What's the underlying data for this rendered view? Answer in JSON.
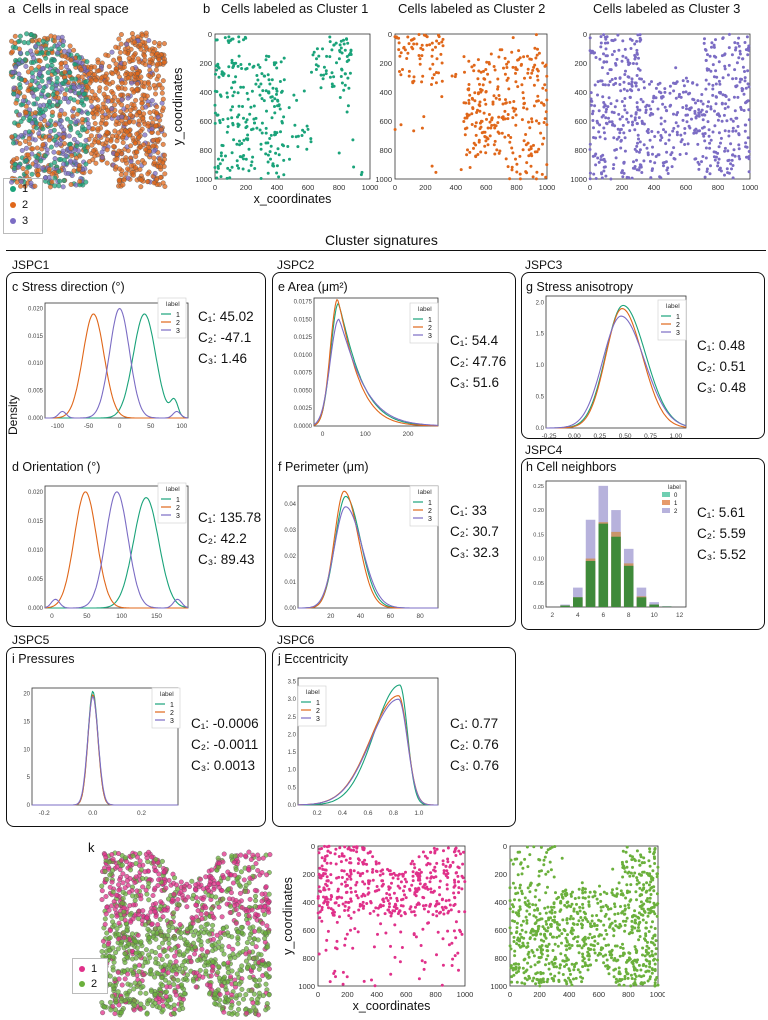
{
  "colors": {
    "c1": "#1aa37a",
    "c2": "#e0671a",
    "c3": "#7b6cc4",
    "pink": "#e0318a",
    "green": "#6bb03c",
    "axis": "#444"
  },
  "panel_a": {
    "letter": "a",
    "title": "Cells in real space",
    "legend": [
      "1",
      "2",
      "3"
    ]
  },
  "panel_b": {
    "letter": "b",
    "titles": [
      "Cells labeled as Cluster 1",
      "Cells labeled as Cluster 2",
      "Cells labeled as Cluster 3"
    ],
    "xlabel": "x_coordinates",
    "ylabel": "y_coordinates",
    "xticks": [
      "0",
      "200",
      "400",
      "600",
      "800",
      "1000"
    ],
    "yticks": [
      "0",
      "200",
      "400",
      "600",
      "800",
      "1000"
    ]
  },
  "signatures_title": "Cluster signatures",
  "groups": [
    "JSPC1",
    "JSPC2",
    "JSPC3",
    "JSPC4",
    "JSPC5",
    "JSPC6"
  ],
  "density_label": "Density",
  "legend_title": "label",
  "chart_data": [
    {
      "id": "c",
      "title": "Stress direction (°)",
      "type": "line",
      "legend": [
        "1",
        "2",
        "3"
      ],
      "xlim": [
        -120,
        110
      ],
      "ylim": [
        0,
        0.021
      ],
      "xticks": [
        "-100",
        "-50",
        "0",
        "50",
        "100"
      ],
      "yticks": [
        "0.000",
        "0.005",
        "0.010",
        "0.015",
        "0.020"
      ],
      "series": [
        {
          "name": "1",
          "peaks": [
            [
              40,
              0.019,
              18
            ],
            [
              88,
              0.003,
              6
            ]
          ]
        },
        {
          "name": "2",
          "peaks": [
            [
              -42,
              0.019,
              17
            ]
          ]
        },
        {
          "name": "3",
          "peaks": [
            [
              0,
              0.02,
              16
            ],
            [
              -92,
              0.0012,
              6
            ],
            [
              92,
              0.0012,
              6
            ]
          ]
        }
      ],
      "stats": [
        "C₁: 45.02",
        "C₂: -47.1",
        "C₃: 1.46"
      ]
    },
    {
      "id": "d",
      "title": "Orientation (°)",
      "type": "line",
      "legend": [
        "1",
        "2",
        "3"
      ],
      "xlim": [
        -10,
        195
      ],
      "ylim": [
        0,
        0.021
      ],
      "xticks": [
        "0",
        "50",
        "100",
        "150"
      ],
      "yticks": [
        "0.000",
        "0.005",
        "0.010",
        "0.015",
        "0.020"
      ],
      "series": [
        {
          "name": "1",
          "peaks": [
            [
              135,
              0.019,
              18
            ]
          ]
        },
        {
          "name": "2",
          "peaks": [
            [
              48,
              0.02,
              16
            ]
          ]
        },
        {
          "name": "3",
          "peaks": [
            [
              93,
              0.02,
              16
            ],
            [
              5,
              0.0015,
              6
            ],
            [
              180,
              0.0015,
              6
            ]
          ]
        }
      ],
      "stats": [
        "C₁: 135.78",
        "C₂: 42.2",
        "C₃: 89.43"
      ]
    },
    {
      "id": "e",
      "title": "Area (μm²)",
      "type": "line",
      "legend": [
        "1",
        "2",
        "3"
      ],
      "xlim": [
        -20,
        270
      ],
      "ylim": [
        0,
        0.018
      ],
      "xticks": [
        "0",
        "100",
        "200"
      ],
      "yticks": [
        "0.0000",
        "0.0025",
        "0.0050",
        "0.0075",
        "0.0100",
        "0.0125",
        "0.0150",
        "0.0175"
      ],
      "series": [
        {
          "name": "1",
          "mode": 37,
          "peak": 0.0172,
          "wl": 18,
          "wr": 55
        },
        {
          "name": "2",
          "mode": 35,
          "peak": 0.0178,
          "wl": 17,
          "wr": 50
        },
        {
          "name": "3",
          "mode": 38,
          "peak": 0.015,
          "wl": 20,
          "wr": 60
        }
      ],
      "stats": [
        "C₁: 54.4",
        "C₂: 47.76",
        "C₃: 51.6"
      ]
    },
    {
      "id": "f",
      "title": "Perimeter (μm)",
      "type": "line",
      "legend": [
        "1",
        "2",
        "3"
      ],
      "xlim": [
        -2,
        92
      ],
      "ylim": [
        0,
        0.047
      ],
      "xticks": [
        "20",
        "40",
        "60",
        "80"
      ],
      "yticks": [
        "0.00",
        "0.01",
        "0.02",
        "0.03",
        "0.04"
      ],
      "series": [
        {
          "name": "1",
          "mode": 30,
          "peak": 0.043,
          "wl": 7,
          "wr": 10
        },
        {
          "name": "2",
          "mode": 29,
          "peak": 0.045,
          "wl": 6.5,
          "wr": 9.5
        },
        {
          "name": "3",
          "mode": 30,
          "peak": 0.039,
          "wl": 7.5,
          "wr": 11
        }
      ],
      "stats": [
        "C₁: 33",
        "C₂: 30.7",
        "C₃: 32.3"
      ]
    },
    {
      "id": "g",
      "title": "Stress anisotropy",
      "type": "line",
      "legend": [
        "1",
        "2",
        "3"
      ],
      "xlim": [
        -0.28,
        1.1
      ],
      "ylim": [
        0,
        2.1
      ],
      "xticks": [
        "-0.25",
        "0.00",
        "0.25",
        "0.50",
        "0.75",
        "1.00"
      ],
      "yticks": [
        "0.0",
        "0.5",
        "1.0",
        "1.5",
        "2.0"
      ],
      "series": [
        {
          "name": "1",
          "mode": 0.48,
          "peak": 1.95,
          "wl": 0.17,
          "wr": 0.22
        },
        {
          "name": "2",
          "mode": 0.47,
          "peak": 1.9,
          "wl": 0.16,
          "wr": 0.2
        },
        {
          "name": "3",
          "mode": 0.46,
          "peak": 1.78,
          "wl": 0.18,
          "wr": 0.23
        }
      ],
      "stats": [
        "C₁: 0.48",
        "C₂: 0.51",
        "C₃: 0.48"
      ]
    },
    {
      "id": "h",
      "title": "Cell neighbors",
      "type": "bar",
      "legend": [
        "0",
        "1",
        "2"
      ],
      "xlim": [
        1.5,
        12.5
      ],
      "ylim": [
        0,
        0.26
      ],
      "xticks": [
        "2",
        "4",
        "6",
        "8",
        "10",
        "12"
      ],
      "yticks": [
        "0.00",
        "0.05",
        "0.10",
        "0.15",
        "0.20",
        "0.25"
      ],
      "x": [
        3,
        4,
        5,
        6,
        7,
        8,
        9,
        10,
        11
      ],
      "green": [
        0.003,
        0.02,
        0.095,
        0.172,
        0.145,
        0.085,
        0.02,
        0.005,
        0.001
      ],
      "orange": [
        0.003,
        0.02,
        0.1,
        0.175,
        0.155,
        0.09,
        0.022,
        0.005,
        0.001
      ],
      "purple": [
        0.005,
        0.04,
        0.18,
        0.25,
        0.2,
        0.12,
        0.04,
        0.01,
        0.002
      ],
      "stats": [
        "C₁: 5.61",
        "C₂: 5.59",
        "C₃: 5.52"
      ]
    },
    {
      "id": "i",
      "title": "Pressures",
      "type": "line",
      "legend": [
        "1",
        "2",
        "3"
      ],
      "xlim": [
        -0.25,
        0.35
      ],
      "ylim": [
        0,
        21
      ],
      "xticks": [
        "-0.2",
        "0.0",
        "0.2"
      ],
      "yticks": [
        "0",
        "5",
        "10",
        "15",
        "20"
      ],
      "series": [
        {
          "name": "1",
          "mode": 0,
          "peak": 20.4,
          "wl": 0.02,
          "wr": 0.021
        },
        {
          "name": "2",
          "mode": 0,
          "peak": 19.8,
          "wl": 0.02,
          "wr": 0.021
        },
        {
          "name": "3",
          "mode": 0,
          "peak": 19.5,
          "wl": 0.021,
          "wr": 0.022
        }
      ],
      "stats": [
        "C₁: -0.0006",
        "C₂: -0.0011",
        "C₃: 0.0013"
      ]
    },
    {
      "id": "j",
      "title": "Eccentricity",
      "type": "line",
      "legend": [
        "1",
        "2",
        "3"
      ],
      "xlim": [
        0.05,
        1.15
      ],
      "ylim": [
        0,
        3.6
      ],
      "xticks": [
        "0.2",
        "0.4",
        "0.6",
        "0.8",
        "1.0"
      ],
      "yticks": [
        "0.0",
        "0.5",
        "1.0",
        "1.5",
        "2.0",
        "2.5",
        "3.0",
        "3.5"
      ],
      "series": [
        {
          "name": "1",
          "mode": 0.85,
          "peak": 3.4,
          "wl": 0.2,
          "wr": 0.06
        },
        {
          "name": "2",
          "mode": 0.84,
          "peak": 3.1,
          "wl": 0.22,
          "wr": 0.07
        },
        {
          "name": "3",
          "mode": 0.84,
          "peak": 3.0,
          "wl": 0.22,
          "wr": 0.07
        }
      ],
      "stats": [
        "C₁: 0.77",
        "C₂: 0.76",
        "C₃: 0.76"
      ]
    }
  ],
  "panel_k": {
    "letter": "k",
    "legend": [
      "1",
      "2"
    ],
    "xlabel": "x_coordinates",
    "ylabel": "y_coordinates",
    "xticks": [
      "0",
      "200",
      "400",
      "600",
      "800",
      "1000"
    ],
    "yticks": [
      "0",
      "200",
      "400",
      "600",
      "800",
      "1000"
    ]
  }
}
